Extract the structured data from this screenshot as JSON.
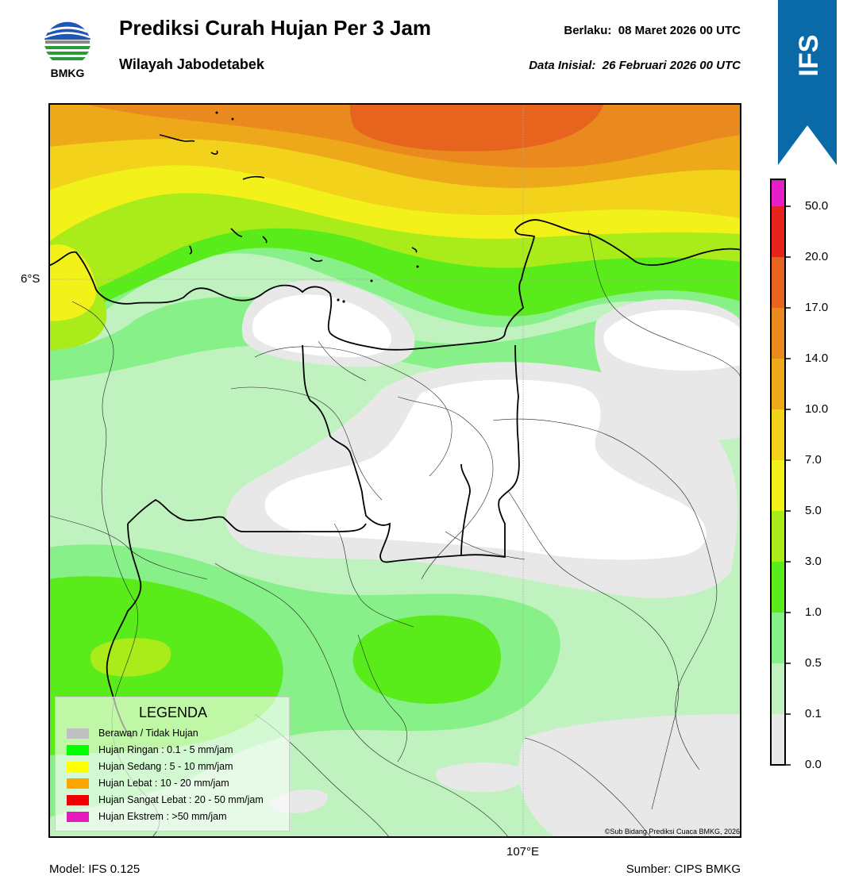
{
  "header": {
    "logo_text": "BMKG",
    "title": "Prediksi Curah Hujan Per 3 Jam",
    "subtitle": "Wilayah Jabodetabek",
    "valid_label": "Berlaku:",
    "valid_value": "08 Maret 2026 00 UTC",
    "initial_label": "Data Inisial:",
    "initial_value": "26 Februari 2026 00 UTC"
  },
  "ribbon": {
    "text": "IFS",
    "color": "#0a6aa8"
  },
  "map": {
    "lat_label": "6°S",
    "lon_label": "107°E",
    "copyright": "©Sub Bidang Prediksi Cuaca BMKG, 2026"
  },
  "colorbar": {
    "labels": [
      "0.0",
      "0.1",
      "0.5",
      "1.0",
      "3.0",
      "5.0",
      "7.0",
      "10.0",
      "14.0",
      "17.0",
      "20.0",
      "50.0"
    ],
    "colors": [
      "#e8e8e8",
      "#bff2bf",
      "#88f088",
      "#5aeb1a",
      "#a9ec1a",
      "#f2f21a",
      "#f2d21a",
      "#eda91a",
      "#ea8a1e",
      "#e7641e",
      "#e8231e",
      "#e61ec8"
    ]
  },
  "legend": {
    "title": "LEGENDA",
    "items": [
      {
        "label": "Berawan / Tidak Hujan",
        "color": "#c0c0c0"
      },
      {
        "label": "Hujan Ringan : 0.1 - 5 mm/jam",
        "color": "#00ff00"
      },
      {
        "label": "Hujan Sedang : 5 - 10 mm/jam",
        "color": "#ffff00"
      },
      {
        "label": "Hujan Lebat : 10 - 20 mm/jam",
        "color": "#ffa500"
      },
      {
        "label": "Hujan Sangat Lebat : 20 - 50 mm/jam",
        "color": "#ee0000"
      },
      {
        "label": "Hujan Ekstrem : >50 mm/jam",
        "color": "#e619bf"
      }
    ]
  },
  "footer": {
    "model": "Model: IFS 0.125",
    "source": "Sumber: CIPS BMKG"
  }
}
